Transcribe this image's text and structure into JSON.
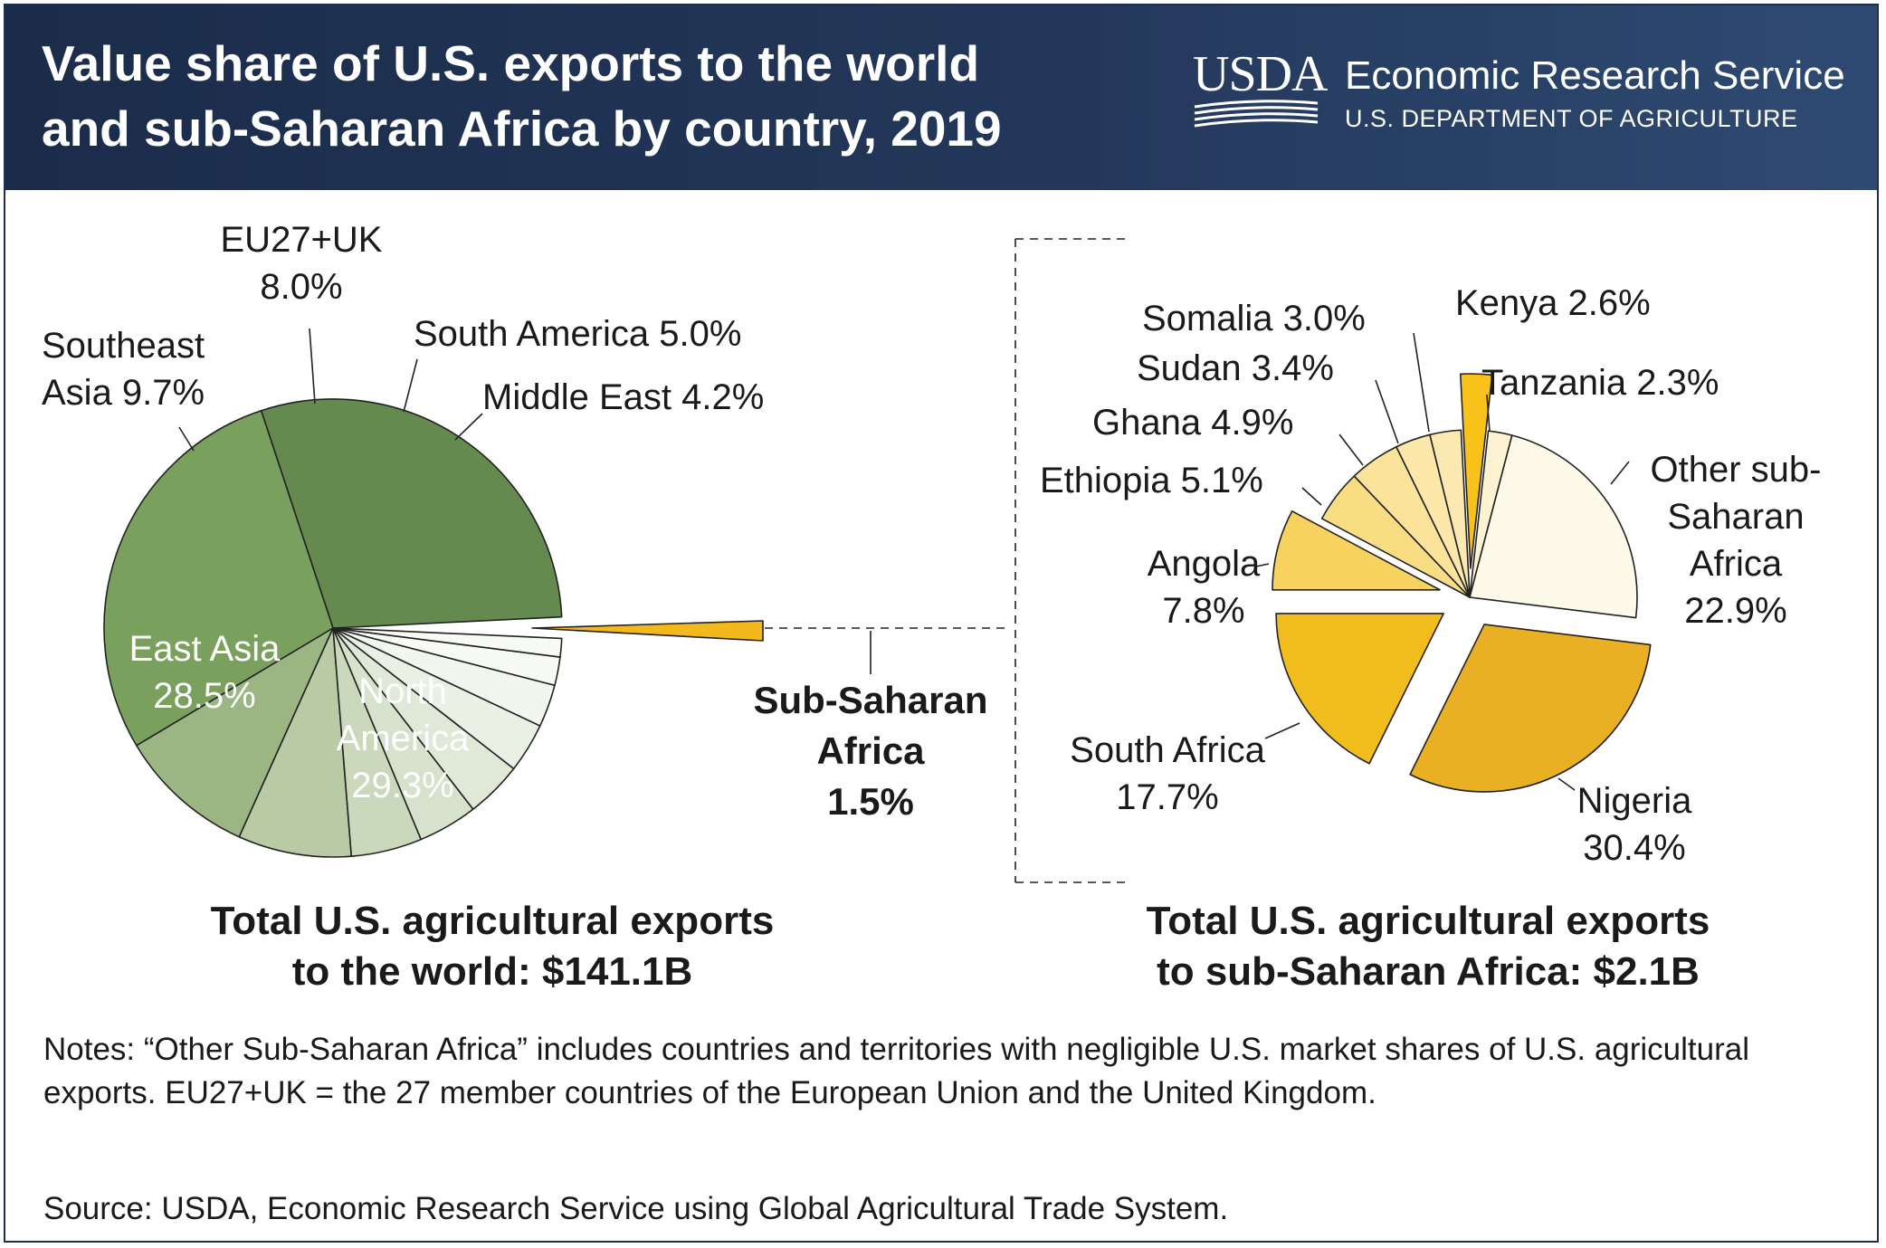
{
  "header": {
    "title_line1": "Value share of U.S. exports to the world",
    "title_line2": "and sub-Saharan Africa by country, 2019",
    "logo_wordmark": "USDA",
    "agency": "Economic Research Service",
    "department": "U.S. DEPARTMENT OF AGRICULTURE"
  },
  "colors": {
    "header_bg": "#1f3356",
    "world_palette": [
      "#658a4f",
      "#7aa05e",
      "#9cb683",
      "#b8cba4",
      "#cad9bb",
      "#d6e2cb",
      "#e0e9d7",
      "#ebf0e4",
      "#f3f6ef",
      "#f8faf5"
    ],
    "africa_palette": [
      "#e8b022",
      "#f0bd1c",
      "#f7d25e",
      "#f9dd83",
      "#fbe49a",
      "#fce8a8",
      "#fbe9b1",
      "#f8c21b",
      "#fdf2d2",
      "#fefaea"
    ],
    "pie_outline": "#222222"
  },
  "chart_data": [
    {
      "type": "pie",
      "title": "Total U.S. agricultural exports",
      "title_line2": "to the world: $141.1B",
      "slices": [
        {
          "key": "north_america",
          "value": 29.3,
          "label_lines": [
            "North",
            "America",
            "29.3%"
          ],
          "label_color": "#ffffff"
        },
        {
          "key": "east_asia",
          "value": 28.5,
          "label_lines": [
            "East Asia",
            "28.5%"
          ],
          "label_color": "#ffffff"
        },
        {
          "key": "southeast_asia",
          "value": 9.7,
          "label_lines": [
            "Southeast",
            "Asia 9.7%"
          ]
        },
        {
          "key": "eu27_uk",
          "value": 8.0,
          "label_lines": [
            "EU27+UK",
            "8.0%"
          ]
        },
        {
          "key": "south_america",
          "value": 5.0,
          "label_lines": [
            "South America 5.0%"
          ]
        },
        {
          "key": "middle_east",
          "value": 4.2,
          "label_lines": [
            "Middle East 4.2%"
          ]
        },
        {
          "key": "unlabeled_1",
          "value": 4.0
        },
        {
          "key": "unlabeled_2",
          "value": 3.5
        },
        {
          "key": "unlabeled_3",
          "value": 3.0
        },
        {
          "key": "unlabeled_4",
          "value": 2.0
        },
        {
          "key": "unlabeled_5",
          "value": 1.3
        },
        {
          "key": "sub_saharan_africa",
          "value": 1.5,
          "exploded": true,
          "label_lines": [
            "Sub-Saharan",
            "Africa",
            "1.5%"
          ]
        }
      ]
    },
    {
      "type": "pie",
      "title": "Total U.S. agricultural exports",
      "title_line2": "to sub-Saharan Africa: $2.1B",
      "slices": [
        {
          "key": "nigeria",
          "value": 30.4,
          "exploded": true,
          "label_lines": [
            "Nigeria",
            "30.4%"
          ]
        },
        {
          "key": "south_africa",
          "value": 17.7,
          "exploded": true,
          "label_lines": [
            "South Africa",
            "17.7%"
          ]
        },
        {
          "key": "angola",
          "value": 7.8,
          "exploded": true,
          "label_lines": [
            "Angola",
            "7.8%"
          ]
        },
        {
          "key": "ethiopia",
          "value": 5.1,
          "label_lines": [
            "Ethiopia 5.1%"
          ]
        },
        {
          "key": "ghana",
          "value": 4.9,
          "label_lines": [
            "Ghana 4.9%"
          ]
        },
        {
          "key": "sudan",
          "value": 3.4,
          "label_lines": [
            "Sudan 3.4%"
          ]
        },
        {
          "key": "somalia",
          "value": 3.0,
          "label_lines": [
            "Somalia 3.0%"
          ]
        },
        {
          "key": "kenya",
          "value": 2.6,
          "exploded": true,
          "label_lines": [
            "Kenya 2.6%"
          ]
        },
        {
          "key": "tanzania",
          "value": 2.3,
          "label_lines": [
            "Tanzania 2.3%"
          ]
        },
        {
          "key": "other_ssa",
          "value": 22.9,
          "label_lines": [
            "Other sub-",
            "Saharan",
            "Africa",
            "22.9%"
          ]
        }
      ]
    }
  ],
  "notes": "Notes: “Other Sub-Saharan Africa” includes countries and territories with negligible U.S. market shares of U.S. agricultural exports. EU27+UK = the 27 member countries of the European Union and the United Kingdom.",
  "source": "Source: USDA, Economic Research Service using Global Agricultural Trade System."
}
